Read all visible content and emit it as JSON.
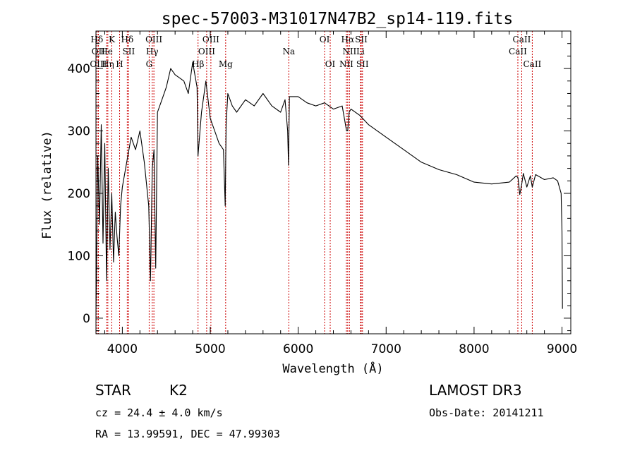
{
  "chart_data": {
    "type": "line",
    "title": "spec-57003-M31017N47B2_sp14-119.fits",
    "xlabel": "Wavelength (Å)",
    "ylabel": "Flux (relative)",
    "xlim": [
      3700,
      9100
    ],
    "ylim": [
      -25,
      460
    ],
    "x_ticks": [
      4000,
      5000,
      6000,
      7000,
      8000,
      9000
    ],
    "y_ticks": [
      0,
      100,
      200,
      300,
      400
    ],
    "grid": false,
    "colors": {
      "spectrum": "#000000",
      "line_marker": "#cc0000",
      "axes": "#000000"
    },
    "spectrum": {
      "name": "Flux",
      "x": [
        3700,
        3720,
        3740,
        3760,
        3780,
        3800,
        3820,
        3840,
        3860,
        3880,
        3900,
        3920,
        3940,
        3960,
        3980,
        4000,
        4050,
        4100,
        4150,
        4200,
        4250,
        4300,
        4320,
        4340,
        4360,
        4380,
        4400,
        4450,
        4500,
        4550,
        4600,
        4650,
        4700,
        4750,
        4800,
        4850,
        4860,
        4900,
        4950,
        5000,
        5050,
        5100,
        5150,
        5170,
        5180,
        5200,
        5250,
        5300,
        5400,
        5500,
        5600,
        5700,
        5800,
        5850,
        5880,
        5890,
        5900,
        6000,
        6100,
        6200,
        6300,
        6400,
        6500,
        6550,
        6563,
        6580,
        6600,
        6700,
        6800,
        7000,
        7200,
        7400,
        7600,
        7800,
        8000,
        8200,
        8400,
        8480,
        8500,
        8520,
        8542,
        8560,
        8600,
        8640,
        8662,
        8700,
        8800,
        8900,
        8950,
        8990,
        9000,
        9005
      ],
      "y": [
        5,
        260,
        150,
        310,
        120,
        280,
        60,
        240,
        110,
        200,
        90,
        170,
        130,
        100,
        180,
        210,
        250,
        290,
        270,
        300,
        250,
        180,
        60,
        240,
        270,
        80,
        330,
        350,
        370,
        400,
        390,
        385,
        380,
        360,
        410,
        370,
        260,
        330,
        380,
        320,
        300,
        280,
        270,
        180,
        310,
        360,
        340,
        330,
        350,
        340,
        360,
        340,
        330,
        350,
        300,
        245,
        355,
        355,
        345,
        340,
        345,
        335,
        340,
        300,
        300,
        330,
        335,
        325,
        310,
        290,
        270,
        250,
        238,
        230,
        218,
        215,
        218,
        228,
        225,
        198,
        215,
        232,
        210,
        228,
        210,
        230,
        222,
        225,
        220,
        200,
        140,
        15
      ]
    },
    "spectral_lines": [
      {
        "label": "Hδ",
        "wavelength": 3711,
        "row": 0
      },
      {
        "label": "K",
        "wavelength": 3880,
        "row": 0
      },
      {
        "label": "Hδ",
        "wavelength": 4056,
        "row": 0
      },
      {
        "label": "OIII",
        "wavelength": 4359,
        "row": 0
      },
      {
        "label": "OIII",
        "wavelength": 5007,
        "row": 0
      },
      {
        "label": "OI",
        "wavelength": 6300,
        "row": 0
      },
      {
        "label": "Hα",
        "wavelength": 6563,
        "row": 0
      },
      {
        "label": "SII",
        "wavelength": 6717,
        "row": 0
      },
      {
        "label": "CaII",
        "wavelength": 8542,
        "row": 0
      },
      {
        "label": "OII",
        "wavelength": 3727,
        "row": 1
      },
      {
        "label": "He",
        "wavelength": 3821,
        "row": 1
      },
      {
        "label": "SII",
        "wavelength": 4072,
        "row": 1
      },
      {
        "label": "Hγ",
        "wavelength": 4340,
        "row": 1
      },
      {
        "label": "OIII",
        "wavelength": 4959,
        "row": 1
      },
      {
        "label": "Na",
        "wavelength": 5893,
        "row": 1
      },
      {
        "label": "NII",
        "wavelength": 6583,
        "row": 1
      },
      {
        "label": "Li",
        "wavelength": 6708,
        "row": 1
      },
      {
        "label": "CaII",
        "wavelength": 8498,
        "row": 1
      },
      {
        "label": "OIII",
        "wavelength": 3727,
        "row": 2
      },
      {
        "label": "Hη",
        "wavelength": 3835,
        "row": 2
      },
      {
        "label": "H",
        "wavelength": 3969,
        "row": 2
      },
      {
        "label": "G",
        "wavelength": 4305,
        "row": 2
      },
      {
        "label": "Hβ",
        "wavelength": 4861,
        "row": 2
      },
      {
        "label": "Mg",
        "wavelength": 5175,
        "row": 2
      },
      {
        "label": "OI",
        "wavelength": 6364,
        "row": 2
      },
      {
        "label": "NII",
        "wavelength": 6548,
        "row": 2
      },
      {
        "label": "SII",
        "wavelength": 6731,
        "row": 2
      },
      {
        "label": "CaII",
        "wavelength": 8662,
        "row": 2
      }
    ]
  },
  "info": {
    "object_class": "STAR",
    "subclass": "K2",
    "survey": "LAMOST DR3",
    "velocity": "cz = 24.4 ± 4.0 km/s",
    "obs_date": "Obs-Date: 20141211",
    "coords": "RA =  13.99591, DEC =  47.99303"
  }
}
